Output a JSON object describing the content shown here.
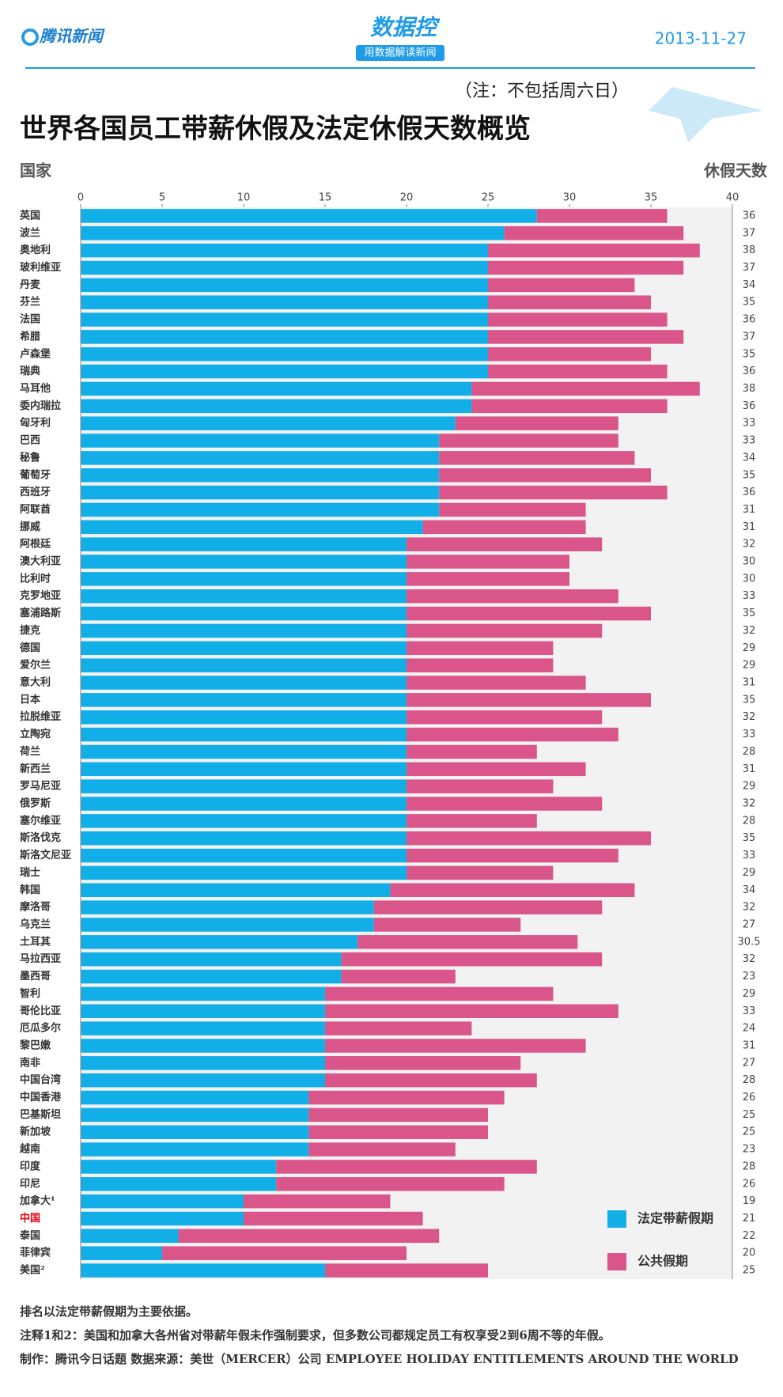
{
  "chart_data": {
    "type": "bar",
    "orientation": "horizontal",
    "stacked": true,
    "logo": "腾讯新闻",
    "brand": "数据控",
    "brand_tagline": "用数据解读新闻",
    "date": "2013-11-27",
    "note": "（注：不包括周六日）",
    "title": "世界各国员工带薪休假及法定休假天数概览",
    "category_axis_label": "国家",
    "value_axis_label": "休假天数",
    "categories": [
      "英国",
      "波兰",
      "奥地利",
      "玻利维亚",
      "丹麦",
      "芬兰",
      "法国",
      "希腊",
      "卢森堡",
      "瑞典",
      "马耳他",
      "委内瑞拉",
      "匈牙利",
      "巴西",
      "秘鲁",
      "葡萄牙",
      "西班牙",
      "阿联酋",
      "挪威",
      "阿根廷",
      "澳大利亚",
      "比利时",
      "克罗地亚",
      "塞浦路斯",
      "捷克",
      "德国",
      "爱尔兰",
      "意大利",
      "日本",
      "拉脱维亚",
      "立陶宛",
      "荷兰",
      "新西兰",
      "罗马尼亚",
      "俄罗斯",
      "塞尔维亚",
      "斯洛伐克",
      "斯洛文尼亚",
      "瑞士",
      "韩国",
      "摩洛哥",
      "乌克兰",
      "土耳其",
      "马拉西亚",
      "墨西哥",
      "智利",
      "哥伦比亚",
      "厄瓜多尔",
      "黎巴嫩",
      "南非",
      "中国台湾",
      "中国香港",
      "巴基斯坦",
      "新加坡",
      "越南",
      "印度",
      "印尼",
      "加拿大¹",
      "中国",
      "泰国",
      "菲律宾",
      "美国²"
    ],
    "highlight_category": "中国",
    "highlight_color": "#e60012",
    "series": [
      {
        "name": "法定带薪假期",
        "color": "#12aee8",
        "values": [
          28,
          26,
          25,
          25,
          25,
          25,
          25,
          25,
          25,
          25,
          24,
          24,
          23,
          22,
          22,
          22,
          22,
          22,
          21,
          20,
          20,
          20,
          20,
          20,
          20,
          20,
          20,
          20,
          20,
          20,
          20,
          20,
          20,
          20,
          20,
          20,
          20,
          20,
          20,
          19,
          18,
          18,
          17,
          16,
          16,
          15,
          15,
          15,
          15,
          15,
          15,
          14,
          14,
          14,
          14,
          12,
          12,
          10,
          10,
          6,
          5,
          15
        ]
      },
      {
        "name": "公共假期",
        "color": "#d9558a",
        "values": [
          8,
          11,
          13,
          12,
          9,
          10,
          11,
          12,
          10,
          11,
          14,
          12,
          10,
          11,
          12,
          13,
          14,
          9,
          10,
          12,
          10,
          10,
          13,
          15,
          12,
          9,
          9,
          11,
          15,
          12,
          13,
          8,
          11,
          9,
          12,
          8,
          15,
          13,
          9,
          15,
          14,
          9,
          13.5,
          16,
          7,
          14,
          18,
          9,
          16,
          12,
          13,
          12,
          11,
          11,
          9,
          16,
          14,
          9,
          11,
          16,
          15,
          10
        ]
      }
    ],
    "totals": [
      36,
      37,
      38,
      37,
      34,
      35,
      36,
      37,
      35,
      36,
      38,
      36,
      33,
      33,
      34,
      35,
      36,
      31,
      31,
      32,
      30,
      30,
      33,
      35,
      32,
      29,
      29,
      31,
      35,
      32,
      33,
      28,
      31,
      29,
      32,
      28,
      35,
      33,
      29,
      34,
      32,
      27,
      30.5,
      32,
      23,
      29,
      33,
      24,
      31,
      27,
      28,
      26,
      25,
      25,
      23,
      28,
      26,
      19,
      21,
      22,
      20,
      25
    ],
    "xlim": [
      0,
      40
    ],
    "xticks": [
      0,
      5,
      10,
      15,
      20,
      25,
      30,
      35,
      40
    ],
    "footnotes": [
      "排名以法定带薪假期为主要依据。",
      "注释1和2：美国和加拿大各州省对带薪年假未作强制要求，但多数公司都规定员工有权享受2到6周不等的年假。",
      "制作：腾讯今日话题 数据来源：美世（MERCER）公司 EMPLOYEE HOLIDAY ENTITLEMENTS AROUND THE WORLD"
    ]
  }
}
